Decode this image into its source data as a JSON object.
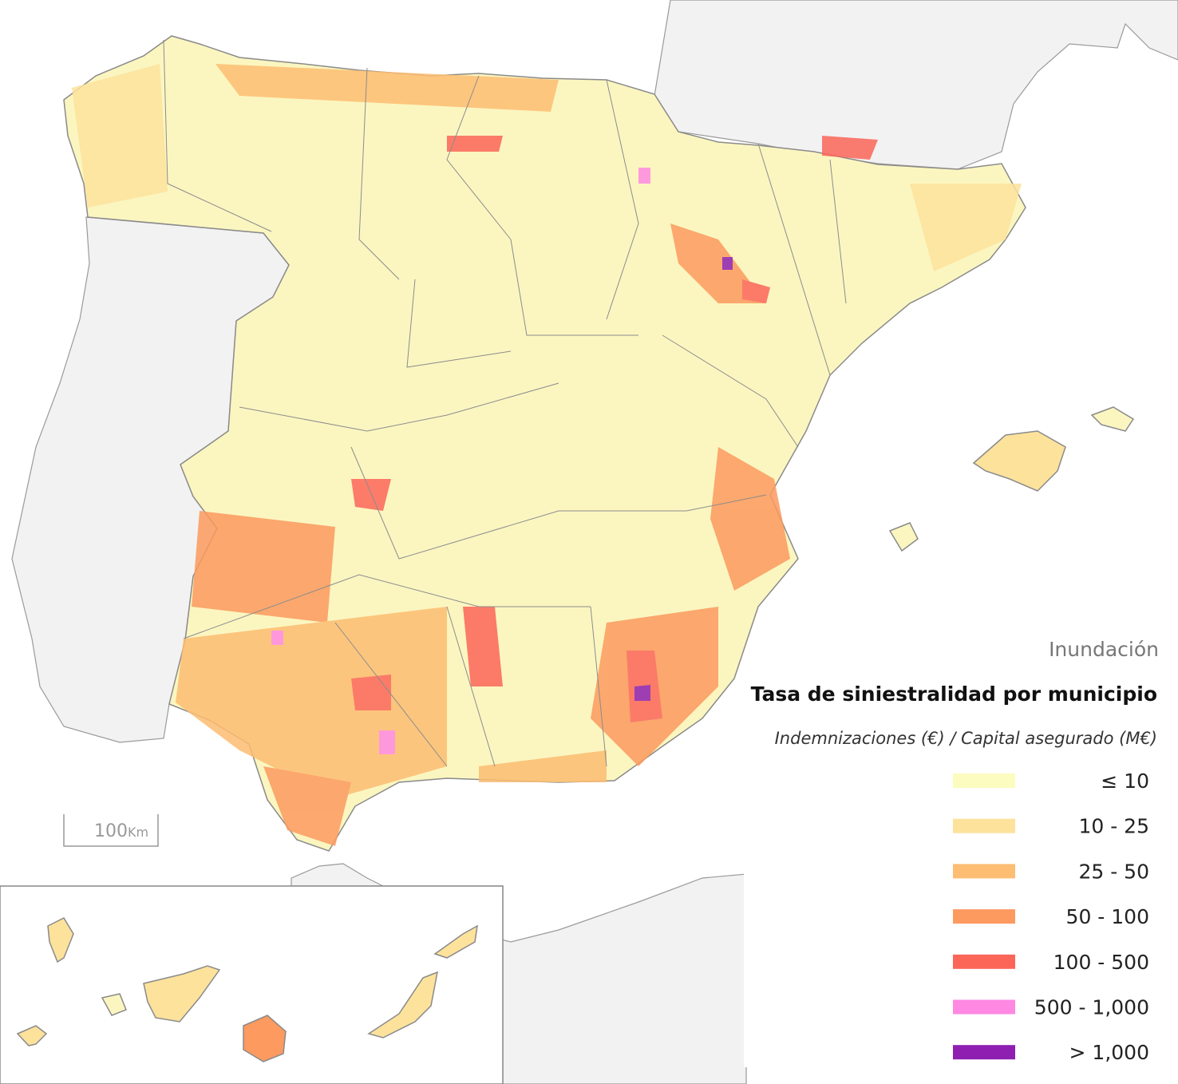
{
  "map": {
    "subtitle_top": "Inundación",
    "title": "Tasa de siniestralidad por municipio",
    "subtitle": "Indemnizaciones (€) / Capital asegurado (M€)",
    "legend": {
      "items": [
        {
          "label": "≤ 10",
          "color": "#fdfcc0"
        },
        {
          "label": "10 - 25",
          "color": "#fde29c"
        },
        {
          "label": "25 - 50",
          "color": "#fdbd72"
        },
        {
          "label": "50 - 100",
          "color": "#fc9a5f"
        },
        {
          "label": "100 - 500",
          "color": "#fb6659"
        },
        {
          "label": "500 - 1,000",
          "color": "#ff88e2"
        },
        {
          "label": "> 1,000",
          "color": "#8e1fb1"
        }
      ]
    },
    "scale_bar": {
      "value": "100",
      "unit": "Km"
    }
  }
}
